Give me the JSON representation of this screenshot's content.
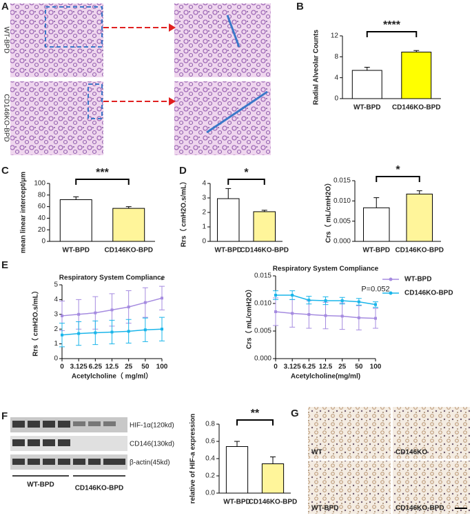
{
  "panels": {
    "letters": [
      "A",
      "B",
      "C",
      "D",
      "E",
      "F",
      "G"
    ],
    "a_rows": [
      "WT-BPD",
      "CD146KO-BPD"
    ],
    "blot_bands": [
      "HIF-1α(120kd)",
      "CD146(130kd)",
      "β-actin(45kd)"
    ],
    "blot_groups": [
      "WT-BPD",
      "CD146KO-BPD"
    ],
    "g_labels": [
      "WT",
      "CD146KO",
      "WT-BPD",
      "CD146KO-BPD"
    ]
  },
  "chart_data": [
    {
      "type": "bar",
      "ylabel": "Radial Alveolar Counts",
      "categories": [
        "WT-BPD",
        "CD146KO-BPD"
      ],
      "values": [
        5.4,
        8.9
      ],
      "errors": [
        0.6,
        0.3
      ],
      "colors": [
        "#ffffff",
        "#ffff00"
      ],
      "ylim": [
        0,
        12
      ],
      "yticks": [
        0,
        4,
        8,
        12
      ],
      "significance": "****"
    },
    {
      "type": "bar",
      "ylabel": "mean linear intercept/μm",
      "categories": [
        "WT-BPD",
        "CD146KO-BPD"
      ],
      "values": [
        72,
        57
      ],
      "errors": [
        5,
        3
      ],
      "colors": [
        "#ffffff",
        "#fff59a"
      ],
      "ylim": [
        0,
        100
      ],
      "yticks": [
        0,
        20,
        40,
        60,
        80,
        100
      ],
      "significance": "***"
    },
    {
      "type": "bar",
      "ylabel": "Rrs（ cmH2O.s/mL）",
      "categories": [
        "WT-BPD",
        "CD146KO-BPD"
      ],
      "values": [
        2.95,
        2.05
      ],
      "errors": [
        0.7,
        0.1
      ],
      "colors": [
        "#ffffff",
        "#fff59a"
      ],
      "ylim": [
        0,
        4
      ],
      "yticks": [
        0,
        1,
        2,
        3,
        4
      ],
      "significance": "*"
    },
    {
      "type": "bar",
      "ylabel": "Crs（ mL/cmH2O）",
      "categories": [
        "WT-BPD",
        "CD146KO-BPD"
      ],
      "values": [
        0.0083,
        0.0117
      ],
      "errors": [
        0.0025,
        0.0008
      ],
      "colors": [
        "#ffffff",
        "#fff59a"
      ],
      "ylim": [
        0,
        0.015
      ],
      "yticks": [
        {
          "value": 0,
          "label": "0.000"
        },
        {
          "value": 0.005,
          "label": "0.005"
        },
        {
          "value": 0.01,
          "label": "0.010"
        },
        {
          "value": 0.015,
          "label": "0.015"
        }
      ],
      "significance": "*"
    },
    {
      "type": "line",
      "title": "Respiratory System Compliance",
      "ylabel": "Rrs（ cmH2O.s/mL）",
      "xlabel": "Acetylcholine（ mg/ml）",
      "categories": [
        "0",
        "3.125",
        "6.25",
        "12.5",
        "25",
        "50",
        "100"
      ],
      "ylim": [
        0,
        5
      ],
      "yticks": [
        0,
        1,
        2,
        3,
        4,
        5
      ],
      "annotation": "*",
      "series": [
        {
          "color": "#a58be0",
          "values": [
            2.9,
            3.0,
            3.1,
            3.3,
            3.5,
            3.8,
            4.1
          ],
          "errors": [
            1.0,
            1.0,
            1.1,
            1.1,
            1.1,
            1.0,
            0.8
          ]
        },
        {
          "color": "#19b5ea",
          "values": [
            1.6,
            1.7,
            1.75,
            1.8,
            1.85,
            1.95,
            2.0
          ],
          "errors": [
            0.8,
            0.8,
            0.8,
            0.8,
            0.8,
            0.8,
            0.8
          ]
        }
      ]
    },
    {
      "type": "line",
      "title": "Respiratory System Compliance",
      "ylabel": "Crs（ mL/cmH2O）",
      "xlabel": "Acetylcholine(mg/ml)",
      "categories": [
        "0",
        "3.125",
        "6.25",
        "12.5",
        "25",
        "50",
        "100"
      ],
      "ylim": [
        0,
        0.015
      ],
      "yticks": [
        {
          "value": 0,
          "label": "0.000"
        },
        {
          "value": 0.005,
          "label": "0.005"
        },
        {
          "value": 0.01,
          "label": "0.010"
        },
        {
          "value": 0.015,
          "label": "0.015"
        }
      ],
      "annotation": "P=0.052",
      "legend": "upper right",
      "series": [
        {
          "name": "WT-BPD",
          "color": "#a58be0",
          "values": [
            0.0085,
            0.0082,
            0.008,
            0.0078,
            0.0077,
            0.0074,
            0.0073
          ],
          "errors": [
            0.0025,
            0.0025,
            0.0025,
            0.0024,
            0.0024,
            0.0022,
            0.0018
          ]
        },
        {
          "name": "CD146KO-BPD",
          "color": "#19b5ea",
          "values": [
            0.0115,
            0.0115,
            0.0106,
            0.0105,
            0.0105,
            0.0103,
            0.0098
          ],
          "errors": [
            0.0008,
            0.0008,
            0.0007,
            0.0007,
            0.0006,
            0.0006,
            0.0005
          ]
        }
      ]
    },
    {
      "type": "bar",
      "ylabel": "relative of HIF-a expression",
      "categories": [
        "WT-BPD",
        "CD146KO-BPD"
      ],
      "values": [
        0.54,
        0.34
      ],
      "errors": [
        0.06,
        0.08
      ],
      "colors": [
        "#ffffff",
        "#fff59a"
      ],
      "ylim": [
        0,
        0.8
      ],
      "yticks": [
        {
          "value": 0,
          "label": "0.0"
        },
        {
          "value": 0.2,
          "label": "0.2"
        },
        {
          "value": 0.4,
          "label": "0.4"
        },
        {
          "value": 0.6,
          "label": "0.6"
        },
        {
          "value": 0.8,
          "label": "0.8"
        }
      ],
      "significance": "**"
    }
  ]
}
